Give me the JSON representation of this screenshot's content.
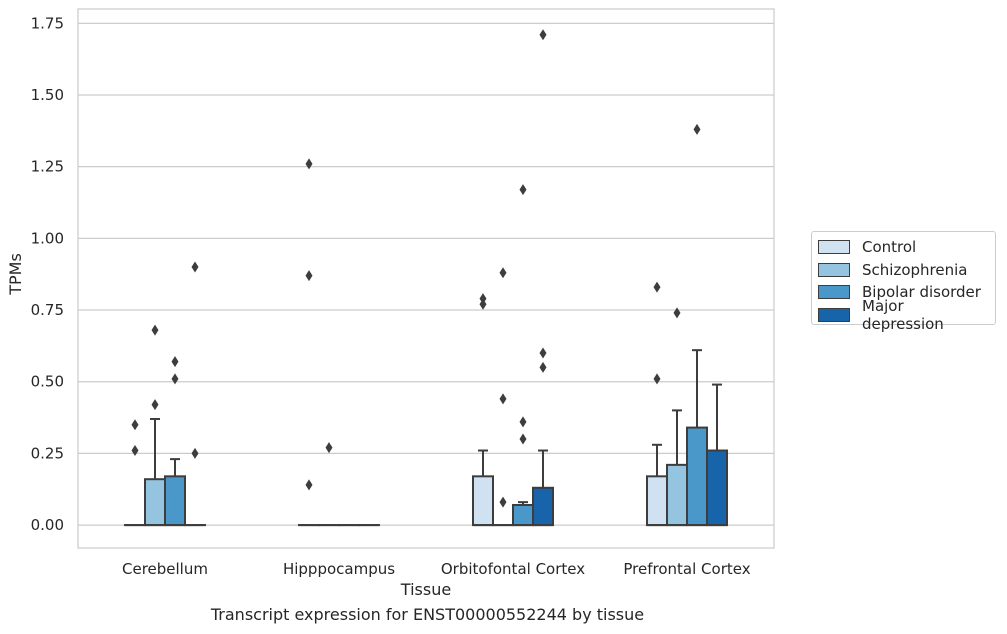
{
  "chart_data": {
    "type": "box",
    "caption": "Transcript expression for ENST00000552244 by tissue",
    "xlabel": "Tissue",
    "ylabel": "TPMs",
    "ylim": [
      -0.08,
      1.8
    ],
    "yticks": [
      0.0,
      0.25,
      0.5,
      0.75,
      1.0,
      1.25,
      1.5,
      1.75
    ],
    "ytick_labels": [
      "0.00",
      "0.25",
      "0.50",
      "0.75",
      "1.00",
      "1.25",
      "1.50",
      "1.75"
    ],
    "grid": "horizontal",
    "legend_position": "right",
    "categories": [
      "Cerebellum",
      "Hipppocampus",
      "Orbitofontal Cortex",
      "Prefrontal Cortex"
    ],
    "series": [
      {
        "name": "Control",
        "color": "#d0e1f2",
        "boxes": [
          {
            "q1": 0.0,
            "median": 0.0,
            "q3": 0.0,
            "whisker_low": 0.0,
            "whisker_high": 0.0,
            "outliers": [
              0.35,
              0.26
            ]
          },
          {
            "q1": 0.0,
            "median": 0.0,
            "q3": 0.0,
            "whisker_low": 0.0,
            "whisker_high": 0.0,
            "outliers": [
              1.26,
              0.87,
              0.14
            ]
          },
          {
            "q1": 0.0,
            "median": 0.0,
            "q3": 0.17,
            "whisker_low": 0.0,
            "whisker_high": 0.26,
            "outliers": [
              0.79,
              0.77
            ]
          },
          {
            "q1": 0.0,
            "median": 0.0,
            "q3": 0.17,
            "whisker_low": 0.0,
            "whisker_high": 0.28,
            "outliers": [
              0.83,
              0.51
            ]
          }
        ]
      },
      {
        "name": "Schizophrenia",
        "color": "#94c4df",
        "boxes": [
          {
            "q1": 0.0,
            "median": 0.0,
            "q3": 0.16,
            "whisker_low": 0.0,
            "whisker_high": 0.37,
            "outliers": [
              0.68,
              0.42
            ]
          },
          {
            "q1": 0.0,
            "median": 0.0,
            "q3": 0.0,
            "whisker_low": 0.0,
            "whisker_high": 0.0,
            "outliers": [
              0.27
            ]
          },
          {
            "q1": 0.0,
            "median": 0.0,
            "q3": 0.0,
            "whisker_low": 0.0,
            "whisker_high": 0.0,
            "outliers": [
              0.88,
              0.44,
              0.08
            ]
          },
          {
            "q1": 0.0,
            "median": 0.0,
            "q3": 0.21,
            "whisker_low": 0.0,
            "whisker_high": 0.4,
            "outliers": [
              0.74
            ]
          }
        ]
      },
      {
        "name": "Bipolar disorder",
        "color": "#4a98c9",
        "boxes": [
          {
            "q1": 0.0,
            "median": 0.0,
            "q3": 0.17,
            "whisker_low": 0.0,
            "whisker_high": 0.23,
            "outliers": [
              0.57,
              0.51
            ]
          },
          {
            "q1": 0.0,
            "median": 0.0,
            "q3": 0.0,
            "whisker_low": 0.0,
            "whisker_high": 0.0,
            "outliers": []
          },
          {
            "q1": 0.0,
            "median": 0.0,
            "q3": 0.07,
            "whisker_low": 0.0,
            "whisker_high": 0.08,
            "outliers": [
              1.17,
              0.36,
              0.3
            ]
          },
          {
            "q1": 0.0,
            "median": 0.0,
            "q3": 0.34,
            "whisker_low": 0.0,
            "whisker_high": 0.61,
            "outliers": [
              1.38
            ]
          }
        ]
      },
      {
        "name": "Major depression",
        "color": "#1764ab",
        "boxes": [
          {
            "q1": 0.0,
            "median": 0.0,
            "q3": 0.0,
            "whisker_low": 0.0,
            "whisker_high": 0.0,
            "outliers": [
              0.9,
              0.25
            ]
          },
          {
            "q1": 0.0,
            "median": 0.0,
            "q3": 0.0,
            "whisker_low": 0.0,
            "whisker_high": 0.0,
            "outliers": []
          },
          {
            "q1": 0.0,
            "median": 0.0,
            "q3": 0.13,
            "whisker_low": 0.0,
            "whisker_high": 0.26,
            "outliers": [
              1.71,
              0.6,
              0.55
            ]
          },
          {
            "q1": 0.0,
            "median": 0.0,
            "q3": 0.26,
            "whisker_low": 0.0,
            "whisker_high": 0.49,
            "outliers": []
          }
        ]
      }
    ]
  }
}
